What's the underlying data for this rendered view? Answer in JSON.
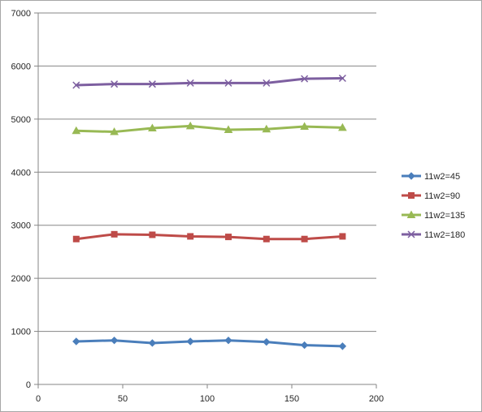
{
  "chart_data": {
    "type": "line",
    "title": "",
    "xlabel": "",
    "ylabel": "",
    "xlim": [
      0,
      200
    ],
    "ylim": [
      0,
      7000
    ],
    "xticks": [
      "0",
      "50",
      "100",
      "150",
      "200"
    ],
    "yticks": [
      "0",
      "1000",
      "2000",
      "3000",
      "4000",
      "5000",
      "6000",
      "7000"
    ],
    "grid": "horizontal major gridlines",
    "legend_position": "right",
    "x": [
      22.5,
      45,
      67.5,
      90,
      112.5,
      135,
      157.5,
      180
    ],
    "series": [
      {
        "name": "11w2=45",
        "color": "#4a7ebb",
        "marker": "diamond",
        "values": [
          810,
          830,
          780,
          810,
          830,
          800,
          740,
          720
        ]
      },
      {
        "name": "11w2=90",
        "color": "#be4b48",
        "marker": "square",
        "values": [
          2740,
          2830,
          2820,
          2790,
          2780,
          2740,
          2740,
          2790
        ]
      },
      {
        "name": "11w2=135",
        "color": "#98b954",
        "marker": "triangle",
        "values": [
          4780,
          4760,
          4830,
          4870,
          4800,
          4810,
          4860,
          4840
        ]
      },
      {
        "name": "11w2=180",
        "color": "#7d5fa0",
        "marker": "x",
        "values": [
          5640,
          5660,
          5660,
          5680,
          5680,
          5680,
          5760,
          5770
        ]
      }
    ]
  }
}
